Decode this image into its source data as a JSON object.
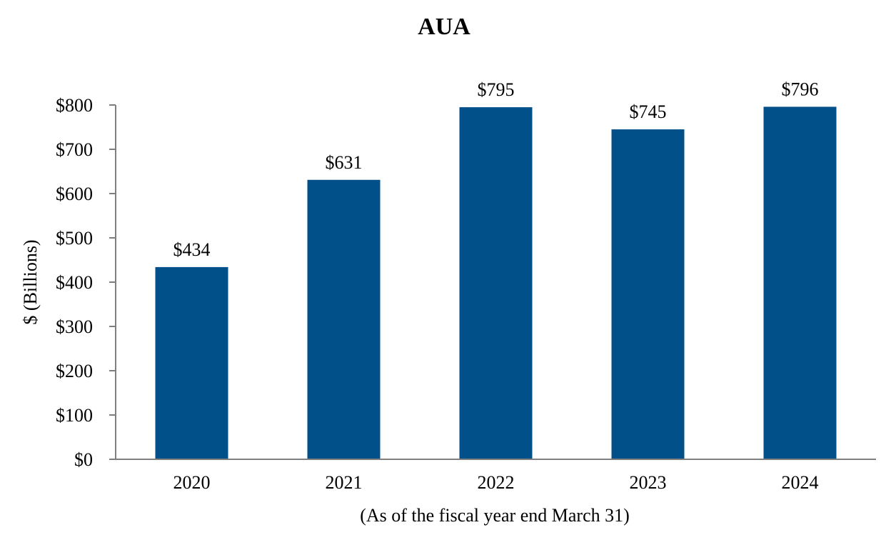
{
  "chart_data": {
    "type": "bar",
    "title": "AUA",
    "xlabel": "(As of the fiscal year end March 31)",
    "ylabel": "$ (Billions)",
    "categories": [
      "2020",
      "2021",
      "2022",
      "2023",
      "2024"
    ],
    "values": [
      434,
      631,
      795,
      745,
      796
    ],
    "value_labels": [
      "$434",
      "$631",
      "$795",
      "$745",
      "$796"
    ],
    "ylim": [
      0,
      800
    ],
    "yticks": [
      0,
      100,
      200,
      300,
      400,
      500,
      600,
      700,
      800
    ],
    "ytick_labels": [
      "$0",
      "$100",
      "$200",
      "$300",
      "$400",
      "$500",
      "$600",
      "$700",
      "$800"
    ],
    "grid": false,
    "bar_color": "#02508A",
    "axis_color": "#7F7F7F"
  }
}
